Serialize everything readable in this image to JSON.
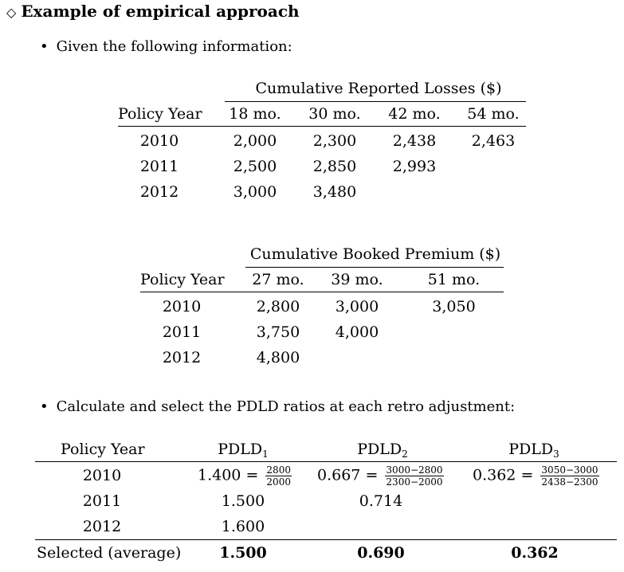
{
  "heading": {
    "marker": "◇",
    "text": "Example of empirical approach"
  },
  "bullet1": "Given the following information:",
  "bullet2": "Calculate and select the PDLD ratios at each retro adjustment:",
  "losses": {
    "caption": "Cumulative Reported Losses ($)",
    "row_header": "Policy Year",
    "columns": [
      "18 mo.",
      "30 mo.",
      "42 mo.",
      "54 mo."
    ],
    "rows": [
      {
        "year": "2010",
        "values": [
          "2,000",
          "2,300",
          "2,438",
          "2,463"
        ]
      },
      {
        "year": "2011",
        "values": [
          "2,500",
          "2,850",
          "2,993",
          ""
        ]
      },
      {
        "year": "2012",
        "values": [
          "3,000",
          "3,480",
          "",
          ""
        ]
      }
    ]
  },
  "premium": {
    "caption": "Cumulative Booked Premium ($)",
    "row_header": "Policy Year",
    "columns": [
      "27 mo.",
      "39 mo.",
      "51 mo."
    ],
    "rows": [
      {
        "year": "2010",
        "values": [
          "2,800",
          "3,000",
          "3,050"
        ]
      },
      {
        "year": "2011",
        "values": [
          "3,750",
          "4,000",
          ""
        ]
      },
      {
        "year": "2012",
        "values": [
          "4,800",
          "",
          ""
        ]
      }
    ]
  },
  "pdld": {
    "row_header": "Policy Year",
    "columns": [
      {
        "base": "PDLD",
        "sub": "1"
      },
      {
        "base": "PDLD",
        "sub": "2"
      },
      {
        "base": "PDLD",
        "sub": "3"
      }
    ],
    "rows": [
      {
        "year": "2010",
        "cells": [
          {
            "value": "1.400",
            "eq": "=",
            "num": "2800",
            "den": "2000"
          },
          {
            "value": "0.667",
            "eq": "=",
            "num": "3000−2800",
            "den": "2300−2000"
          },
          {
            "value": "0.362",
            "eq": "=",
            "num": "3050−3000",
            "den": "2438−2300"
          }
        ]
      },
      {
        "year": "2011",
        "cells": [
          {
            "value": "1.500"
          },
          {
            "value": "0.714"
          }
        ]
      },
      {
        "year": "2012",
        "cells": [
          {
            "value": "1.600"
          }
        ]
      }
    ],
    "selected_label": "Selected (average)",
    "selected": [
      "1.500",
      "0.690",
      "0.362"
    ]
  }
}
